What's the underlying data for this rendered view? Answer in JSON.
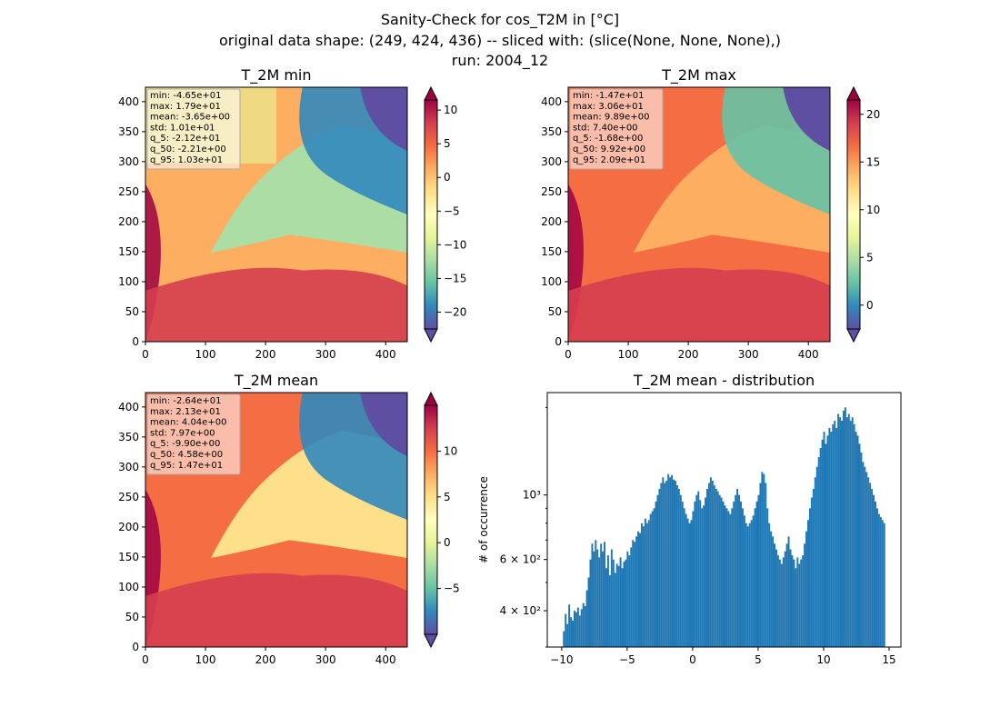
{
  "figure": {
    "title_lines": [
      "Sanity-Check for cos_T2M in [°C]",
      "original data shape: (249, 424, 436) -- sliced with: (slice(None, None, None),)",
      "run: 2004_12"
    ]
  },
  "chart_data": [
    {
      "type": "heatmap",
      "title": "T_2M min",
      "xlim": [
        0,
        436
      ],
      "ylim": [
        0,
        424
      ],
      "xticks": [
        0,
        100,
        200,
        300,
        400
      ],
      "yticks": [
        0,
        50,
        100,
        150,
        200,
        250,
        300,
        350,
        400
      ],
      "colorbar": {
        "min": -22.5,
        "max": 11.5,
        "ticks": [
          10,
          5,
          0,
          -5,
          -10,
          -15,
          -20
        ],
        "tick_labels": [
          "10",
          "5",
          "0",
          "−5",
          "−10",
          "−15",
          "−20"
        ],
        "extend": "both",
        "colormap": "Spectral_r"
      },
      "stats": [
        "min: -4.65e+01",
        "max: 1.79e+01",
        "mean: -3.65e+00",
        "std: 1.01e+01",
        "q_5: -2.12e+01",
        "q_50: -2.21e+00",
        "q_95: 1.03e+01"
      ]
    },
    {
      "type": "heatmap",
      "title": "T_2M max",
      "xlim": [
        0,
        436
      ],
      "ylim": [
        0,
        424
      ],
      "xticks": [
        0,
        100,
        200,
        300,
        400
      ],
      "yticks": [
        0,
        50,
        100,
        150,
        200,
        250,
        300,
        350,
        400
      ],
      "colorbar": {
        "min": -2.5,
        "max": 21.5,
        "ticks": [
          20,
          15,
          10,
          5,
          0
        ],
        "tick_labels": [
          "20",
          "15",
          "10",
          "5",
          "0"
        ],
        "extend": "both",
        "colormap": "Spectral_r"
      },
      "stats": [
        "min: -1.47e+01",
        "max: 3.06e+01",
        "mean: 9.89e+00",
        "std: 7.40e+00",
        "q_5: -1.68e+00",
        "q_50: 9.92e+00",
        "q_95: 2.09e+01"
      ]
    },
    {
      "type": "heatmap",
      "title": "T_2M mean",
      "xlim": [
        0,
        436
      ],
      "ylim": [
        0,
        424
      ],
      "xticks": [
        0,
        100,
        200,
        300,
        400
      ],
      "yticks": [
        0,
        50,
        100,
        150,
        200,
        250,
        300,
        350,
        400
      ],
      "colorbar": {
        "min": -10,
        "max": 15,
        "ticks": [
          10,
          5,
          0,
          -5
        ],
        "tick_labels": [
          "10",
          "5",
          "0",
          "−5"
        ],
        "extend": "both",
        "colormap": "Spectral_r"
      },
      "stats": [
        "min: -2.64e+01",
        "max: 2.13e+01",
        "mean: 4.04e+00",
        "std: 7.97e+00",
        "q_5: -9.90e+00",
        "q_50: 4.58e+00",
        "q_95: 1.47e+01"
      ]
    },
    {
      "type": "bar",
      "title": "T_2M mean - distribution",
      "xlabel": "",
      "ylabel": "# of occurrence",
      "xlim": [
        -11.1,
        15.9
      ],
      "ylim": [
        300,
        2250
      ],
      "yscale": "log",
      "xticks": [
        -10,
        -5,
        0,
        5,
        10,
        15
      ],
      "xtick_labels": [
        "−10",
        "−5",
        "0",
        "5",
        "10",
        "15"
      ],
      "yticks_major": [
        {
          "value": 400,
          "label": "4 × 10²"
        },
        {
          "value": 600,
          "label": "6 × 10²"
        },
        {
          "value": 1000,
          "label": "10³"
        }
      ],
      "yticks_minor": [
        300,
        500,
        700,
        800,
        900,
        2000
      ],
      "bin_start": -9.9,
      "bin_end": 14.7,
      "bar_color": "#1f77b4",
      "values": [
        340,
        390,
        360,
        420,
        380,
        370,
        400,
        395,
        410,
        385,
        405,
        425,
        415,
        470,
        520,
        600,
        680,
        640,
        700,
        650,
        610,
        680,
        640,
        690,
        560,
        620,
        530,
        650,
        600,
        540,
        580,
        570,
        610,
        560,
        590,
        600,
        640,
        620,
        660,
        700,
        690,
        720,
        750,
        740,
        800,
        780,
        830,
        800,
        820,
        860,
        880,
        900,
        950,
        1000,
        1050,
        1100,
        1150,
        1100,
        1120,
        1180,
        1150,
        1170,
        1130,
        1120,
        1080,
        1050,
        1000,
        950,
        900,
        860,
        830,
        800,
        820,
        880,
        950,
        1000,
        1030,
        960,
        900,
        920,
        980,
        1050,
        1100,
        1150,
        1120,
        1080,
        1050,
        1030,
        1000,
        980,
        950,
        920,
        900,
        880,
        860,
        900,
        950,
        1000,
        1050,
        1000,
        950,
        900,
        850,
        800,
        780,
        800,
        820,
        850,
        900,
        950,
        1000,
        1100,
        1200,
        1180,
        1100,
        900,
        800,
        750,
        720,
        680,
        650,
        620,
        600,
        580,
        610,
        640,
        680,
        720,
        650,
        620,
        600,
        560,
        610,
        580,
        600,
        620,
        680,
        750,
        820,
        900,
        980,
        1050,
        1150,
        1250,
        1350,
        1450,
        1550,
        1650,
        1500,
        1600,
        1700,
        1650,
        1750,
        1800,
        1700,
        1900,
        1850,
        1800,
        1950,
        2000,
        1850,
        1900,
        1800,
        1850,
        1750,
        1650,
        1600,
        1500,
        1400,
        1300,
        1250,
        1200,
        1150,
        1100,
        1050,
        1000,
        950,
        900,
        860,
        840,
        820,
        800
      ]
    }
  ]
}
